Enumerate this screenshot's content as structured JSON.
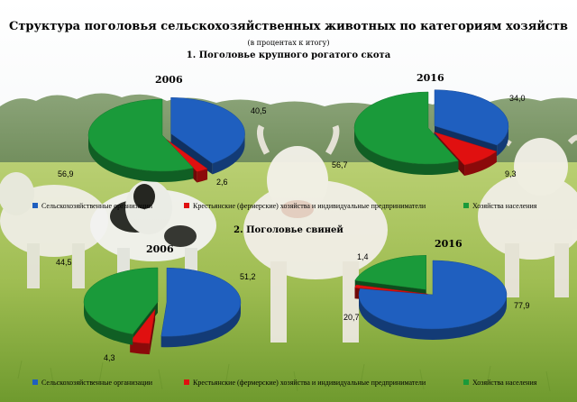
{
  "title": "Структура поголовья сельскохозяйственных животных по категориям хозяйств",
  "subtitle": "(в процентах к итогу)",
  "colors": {
    "org": "#1f5fbf",
    "farm": "#e01010",
    "house": "#1a9a3a"
  },
  "chart_data": [
    {
      "type": "pie",
      "section": "1. Поголовье крупного рогатого скота",
      "legend": [
        "Сельскохозяйственные организации",
        "Крестьянские (фермерские) хозяйства и индивидуальные предприниматели",
        "Хозяйства населения"
      ],
      "pies": [
        {
          "year": "2006",
          "values": [
            40.5,
            2.6,
            56.9
          ],
          "labels": [
            "40,5",
            "2,6",
            "56,9"
          ]
        },
        {
          "year": "2016",
          "values": [
            34.0,
            9.3,
            56.7
          ],
          "labels": [
            "34,0",
            "9,3",
            "56,7"
          ]
        }
      ]
    },
    {
      "type": "pie",
      "section": "2. Поголовье свиней",
      "legend": [
        "Сельскохозяйственные организации",
        "Крестьянские (фермерские) хозяйства и индивидуальные предприниматели",
        "Хозяйства населения"
      ],
      "pies": [
        {
          "year": "2006",
          "values": [
            51.2,
            4.3,
            44.5
          ],
          "labels": [
            "51,2",
            "4,3",
            "44,5"
          ]
        },
        {
          "year": "2016",
          "values": [
            77.9,
            1.4,
            20.7
          ],
          "labels": [
            "77,9",
            "1,4",
            "20,7"
          ]
        }
      ]
    }
  ]
}
